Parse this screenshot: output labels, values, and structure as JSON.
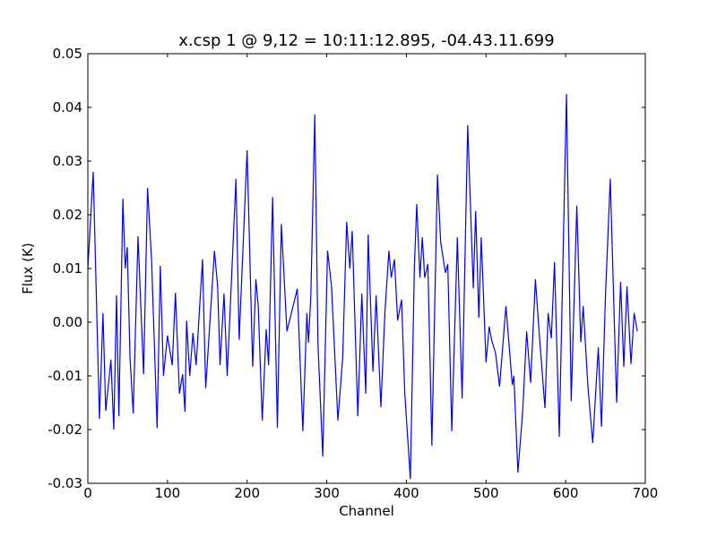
{
  "chart_data": {
    "type": "line",
    "title": "x.csp 1 @ 9,12 = 10:11:12.895, -04.43.11.699",
    "x_label": "Channel",
    "y_label": "Flux (K)",
    "xlim": [
      0,
      700
    ],
    "xticks": [
      0,
      100,
      200,
      300,
      400,
      500,
      600,
      700
    ],
    "ylim": [
      -0.03,
      0.05
    ],
    "yticks": [
      -0.03,
      -0.02,
      -0.01,
      {
        "value": 0,
        "label": "0.00"
      },
      0.01,
      0.02,
      0.03,
      0.04,
      0.05
    ],
    "grid": false,
    "series": [
      {
        "name": "x.csp 1",
        "color": "#0000ff",
        "x": [
          0,
          6.75,
          14.6,
          19,
          22.5,
          29,
          32.6,
          36,
          39,
          44,
          47,
          49.5,
          53,
          57,
          63,
          70,
          75,
          80,
          87,
          91,
          95,
          100,
          106,
          110,
          115,
          119,
          122,
          124,
          128,
          132,
          136,
          144,
          148,
          159,
          163,
          166,
          171,
          175,
          186,
          190,
          200,
          207,
          211,
          214,
          219,
          224,
          227,
          232,
          238,
          243,
          250,
          263,
          270,
          275,
          277,
          280,
          285,
          289,
          295,
          301,
          306,
          314,
          320,
          325,
          329,
          332,
          339,
          344,
          349,
          352,
          358,
          362,
          368,
          373,
          378,
          381,
          385,
          389,
          394,
          398,
          405,
          410,
          413,
          417,
          420,
          423,
          427,
          432,
          439,
          443,
          449,
          452,
          457,
          464,
          470,
          477,
          484,
          487,
          491,
          494,
          500,
          504,
          507,
          512,
          517,
          525,
          533,
          535,
          540,
          546,
          551,
          556,
          562,
          567,
          574,
          578,
          582,
          586,
          592,
          601,
          607,
          614,
          619,
          622,
          628,
          634,
          641,
          645,
          650,
          656,
          664,
          669,
          673,
          677,
          682,
          686,
          690
        ],
        "values": [
          0.01,
          0.028,
          -0.018,
          0.0017,
          -0.0165,
          -0.007,
          -0.02,
          0.005,
          -0.0175,
          0.023,
          0.01,
          0.014,
          -0.0067,
          -0.017,
          0.016,
          -0.0097,
          0.025,
          0.0117,
          -0.0197,
          0.0105,
          -0.01,
          -0.0025,
          -0.008,
          0.0055,
          -0.0133,
          -0.0097,
          -0.0167,
          0.0003,
          -0.01,
          -0.002,
          -0.008,
          0.0117,
          -0.0123,
          0.0133,
          0.0067,
          -0.008,
          0.0053,
          -0.01,
          0.0267,
          -0.0033,
          0.032,
          -0.0083,
          0.008,
          0.003,
          -0.0183,
          -0.0013,
          -0.008,
          0.0233,
          -0.0197,
          0.0183,
          -0.0017,
          0.0062,
          -0.0203,
          0.0017,
          -0.0038,
          0.0047,
          0.0387,
          -0.0042,
          -0.025,
          0.0133,
          0.0067,
          -0.0183,
          -0.0067,
          0.0187,
          0.01,
          0.017,
          -0.0175,
          0.0053,
          -0.0133,
          0.0163,
          -0.0092,
          0.005,
          -0.0158,
          0.0017,
          0.0133,
          0.0083,
          0.0117,
          0.0003,
          0.0042,
          -0.0133,
          -0.0292,
          0.01,
          0.022,
          0.0083,
          0.0158,
          0.0083,
          0.0108,
          -0.023,
          0.0275,
          0.015,
          0.0092,
          0.0108,
          -0.0203,
          0.0158,
          -0.0142,
          0.0367,
          0.0063,
          0.0207,
          0.0008,
          0.0158,
          -0.0075,
          -0.0008,
          -0.0033,
          -0.0058,
          -0.012,
          0.003,
          -0.0117,
          -0.01,
          -0.028,
          -0.0167,
          -0.0017,
          -0.0113,
          0.008,
          -0.0025,
          -0.016,
          0.0017,
          -0.003,
          0.0112,
          -0.0213,
          0.0425,
          -0.0147,
          0.0217,
          -0.0037,
          0.003,
          -0.012,
          -0.0225,
          -0.0047,
          -0.0195,
          0.005,
          0.0267,
          -0.015,
          0.0075,
          -0.0083,
          0.0067,
          -0.0078,
          0.0017,
          -0.0017
        ]
      }
    ]
  }
}
